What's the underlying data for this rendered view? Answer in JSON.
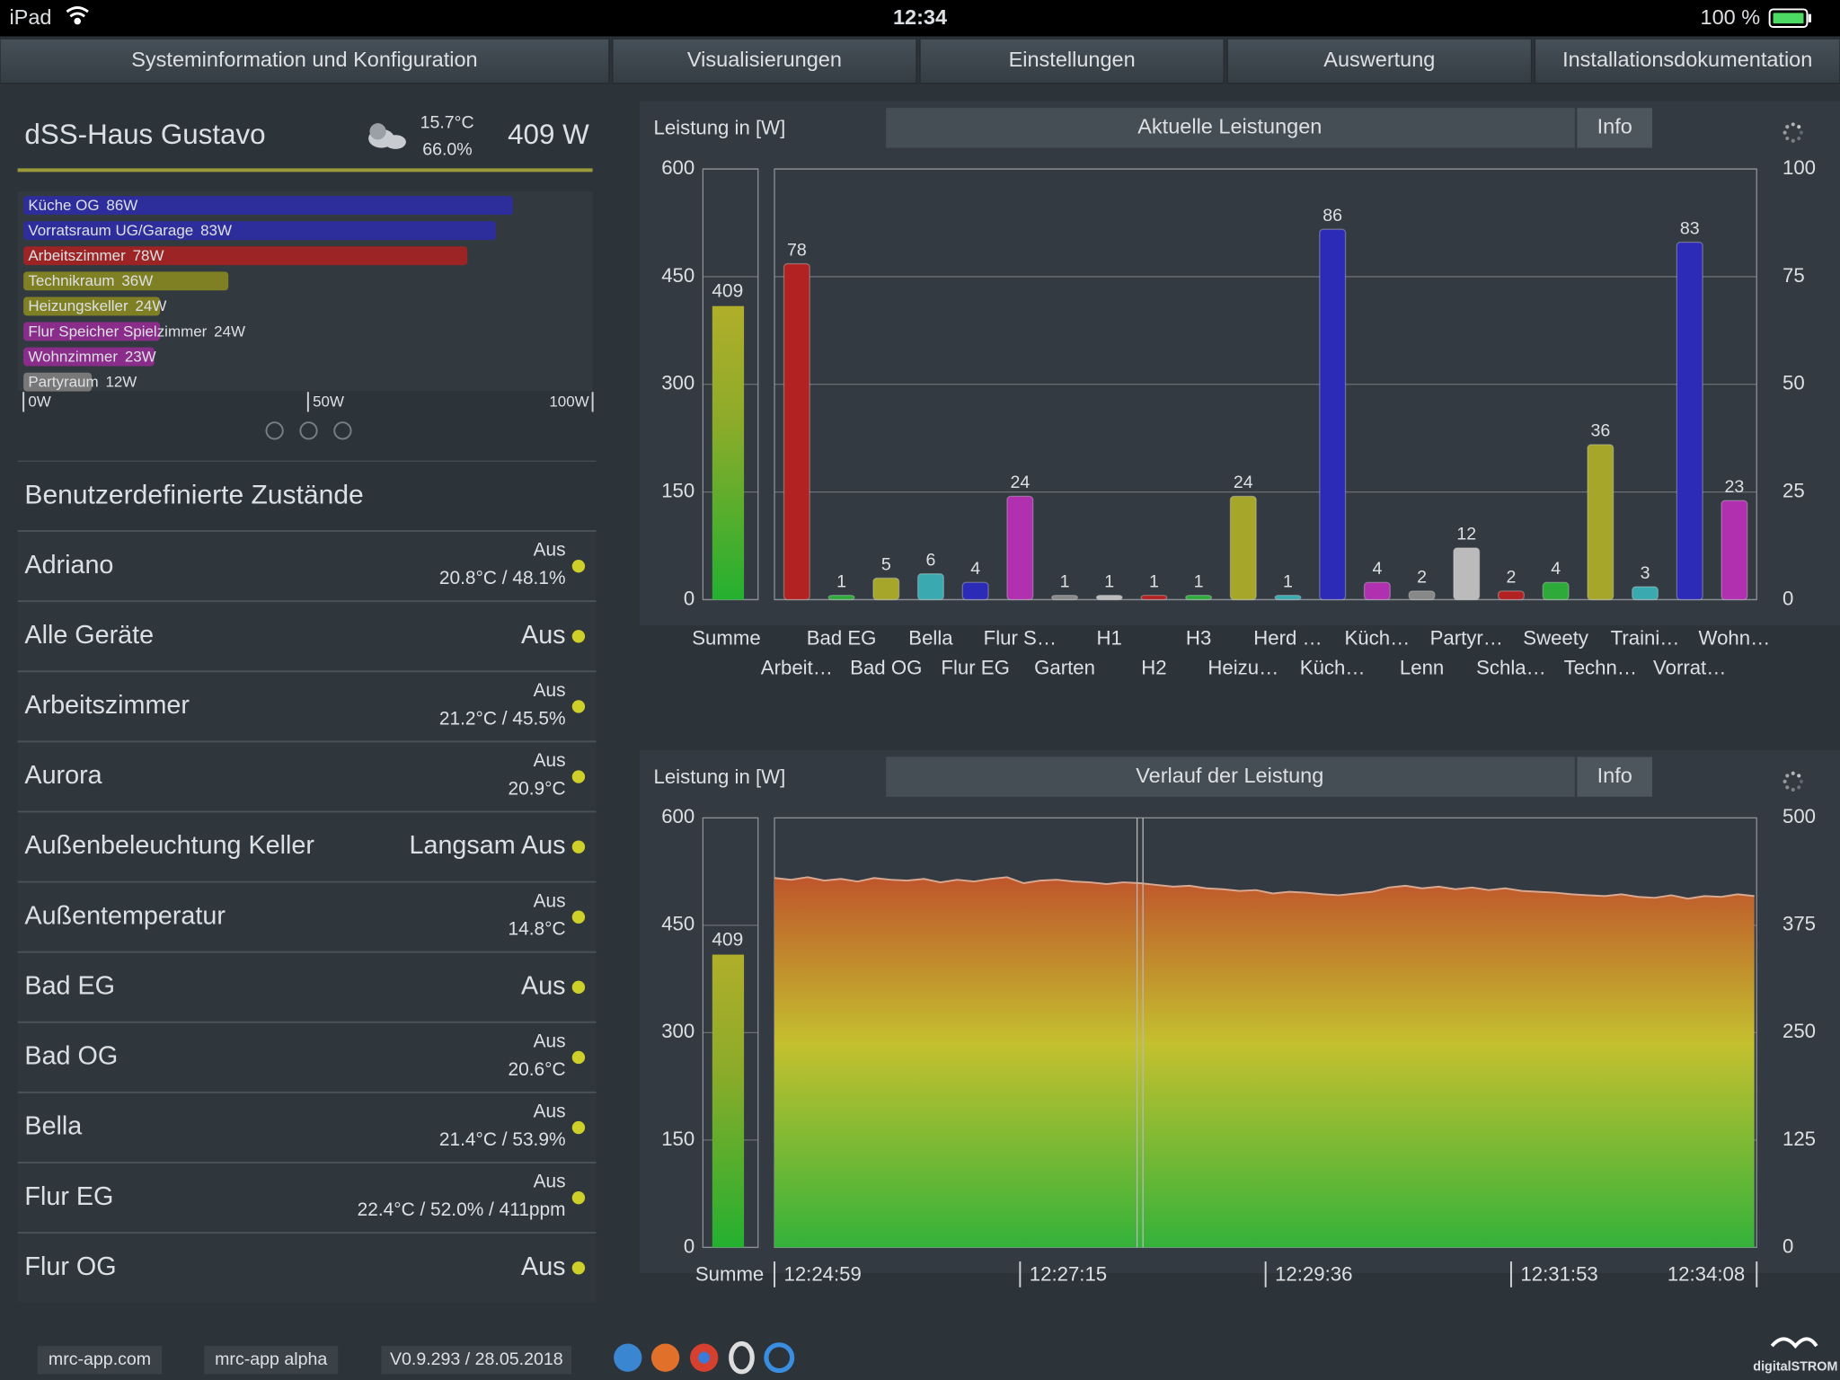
{
  "status_bar": {
    "device": "iPad",
    "time": "12:34",
    "battery": "100 %"
  },
  "tabs": [
    "Systeminformation und Konfiguration",
    "Visualisierungen",
    "Einstellungen",
    "Auswertung",
    "Installationsdokumentation"
  ],
  "house": {
    "name": "dSS-Haus Gustavo",
    "temperature": "15.7°C",
    "humidity": "66.0%",
    "power": "409 W"
  },
  "states": {
    "title": "Benutzerdefinierte Zustände",
    "items": [
      {
        "name": "Adriano",
        "status": "Aus",
        "detail": "20.8°C / 48.1%"
      },
      {
        "name": "Alle Geräte",
        "status": "Aus"
      },
      {
        "name": "Arbeitszimmer",
        "status": "Aus",
        "detail": "21.2°C / 45.5%"
      },
      {
        "name": "Aurora",
        "status": "Aus",
        "detail": "20.9°C"
      },
      {
        "name": "Außenbeleuchtung Keller",
        "status": "Langsam Aus"
      },
      {
        "name": "Außentemperatur",
        "status": "Aus",
        "detail": "14.8°C"
      },
      {
        "name": "Bad EG",
        "status": "Aus"
      },
      {
        "name": "Bad OG",
        "status": "Aus",
        "detail": "20.6°C"
      },
      {
        "name": "Bella",
        "status": "Aus",
        "detail": "21.4°C / 53.9%"
      },
      {
        "name": "Flur EG",
        "status": "Aus",
        "detail": "22.4°C / 52.0% / 411ppm"
      },
      {
        "name": "Flur OG",
        "status": "Aus"
      }
    ]
  },
  "footer": {
    "links": [
      "mrc-app.com",
      "mrc-app alpha",
      "V0.9.293 / 28.05.2018"
    ],
    "brand": "digitalSTROM"
  },
  "chart_data": [
    {
      "type": "hbar",
      "categories": [
        "Küche OG",
        "Vorratsraum UG/Garage",
        "Arbeitszimmer",
        "Technikraum",
        "Heizungskeller",
        "Flur Speicher Spielzimmer",
        "Wohnzimmer",
        "Partyraum"
      ],
      "values": [
        86,
        83,
        78,
        36,
        24,
        24,
        23,
        12
      ],
      "value_labels": [
        "86W",
        "83W",
        "78W",
        "36W",
        "24W",
        "24W",
        "23W",
        "12W"
      ],
      "colors": [
        "#2d2d9c",
        "#2d2d9c",
        "#9c2424",
        "#7f7f24",
        "#7f7f24",
        "#8a2c8a",
        "#8a2c8a",
        "#787878"
      ],
      "xlim": [
        0,
        100
      ],
      "xticks": [
        {
          "value": 0,
          "label": "0W"
        },
        {
          "value": 50,
          "label": "50W"
        },
        {
          "value": 100,
          "label": "100W"
        }
      ]
    },
    {
      "type": "bar",
      "title": "Aktuelle Leistungen",
      "info": "Info",
      "y_label": "Leistung in [W]",
      "summary": {
        "name": "Summe",
        "value": 409
      },
      "categories": [
        "Arbeit…",
        "Bad EG",
        "Bad OG",
        "Bella",
        "Flur EG",
        "Flur S…",
        "Garten",
        "H1",
        "H2",
        "H3",
        "Heizu…",
        "Herd …",
        "Küch…",
        "Küch…",
        "Lenn",
        "Partyr…",
        "Schla…",
        "Sweety",
        "Techn…",
        "Traini…",
        "Vorrat…",
        "Wohn…"
      ],
      "values": [
        78,
        1,
        5,
        6,
        4,
        24,
        1,
        1,
        1,
        1,
        24,
        1,
        86,
        4,
        2,
        12,
        2,
        4,
        36,
        3,
        83,
        23
      ],
      "colors": [
        "#b22222",
        "#2eaa3a",
        "#a6a62a",
        "#3aa9b0",
        "#2b2bb8",
        "#b030b0",
        "#888888",
        "#bbbbbb",
        "#b22222",
        "#2eaa3a",
        "#a6a62a",
        "#3aa9b0",
        "#2b2bb8",
        "#b030b0",
        "#888888",
        "#bbbbbb",
        "#b22222",
        "#2eaa3a",
        "#a6a62a",
        "#3aa9b0",
        "#2b2bb8",
        "#b030b0"
      ],
      "axis": "y2",
      "ylim": [
        0,
        600
      ],
      "yticks": [
        0,
        150,
        300,
        450,
        600
      ],
      "y2lim": [
        0,
        100
      ],
      "y2ticks": [
        0,
        25,
        50,
        75,
        100
      ],
      "grid": true
    },
    {
      "type": "area",
      "title": "Verlauf der Leistung",
      "info": "Info",
      "y_label": "Leistung in [W]",
      "summary": {
        "name": "Summe",
        "value": 409
      },
      "x_labels": [
        "12:24:59",
        "12:27:15",
        "12:29:36",
        "12:31:53",
        "12:34:08"
      ],
      "values": [
        430,
        428,
        431,
        427,
        429,
        426,
        430,
        428,
        427,
        429,
        425,
        428,
        426,
        429,
        431,
        424,
        427,
        428,
        426,
        425,
        423,
        425,
        424,
        422,
        420,
        421,
        418,
        417,
        415,
        416,
        412,
        414,
        413,
        411,
        410,
        412,
        414,
        419,
        421,
        418,
        420,
        417,
        419,
        416,
        418,
        415,
        414,
        413,
        411,
        410,
        409,
        411,
        408,
        407,
        410,
        406,
        409,
        408,
        411,
        409
      ],
      "axis": "y2",
      "ylim": [
        0,
        600
      ],
      "yticks": [
        0,
        150,
        300,
        450,
        600
      ],
      "y2lim": [
        0,
        500
      ],
      "y2ticks": [
        0,
        125,
        250,
        375,
        500
      ],
      "grid": true
    }
  ]
}
